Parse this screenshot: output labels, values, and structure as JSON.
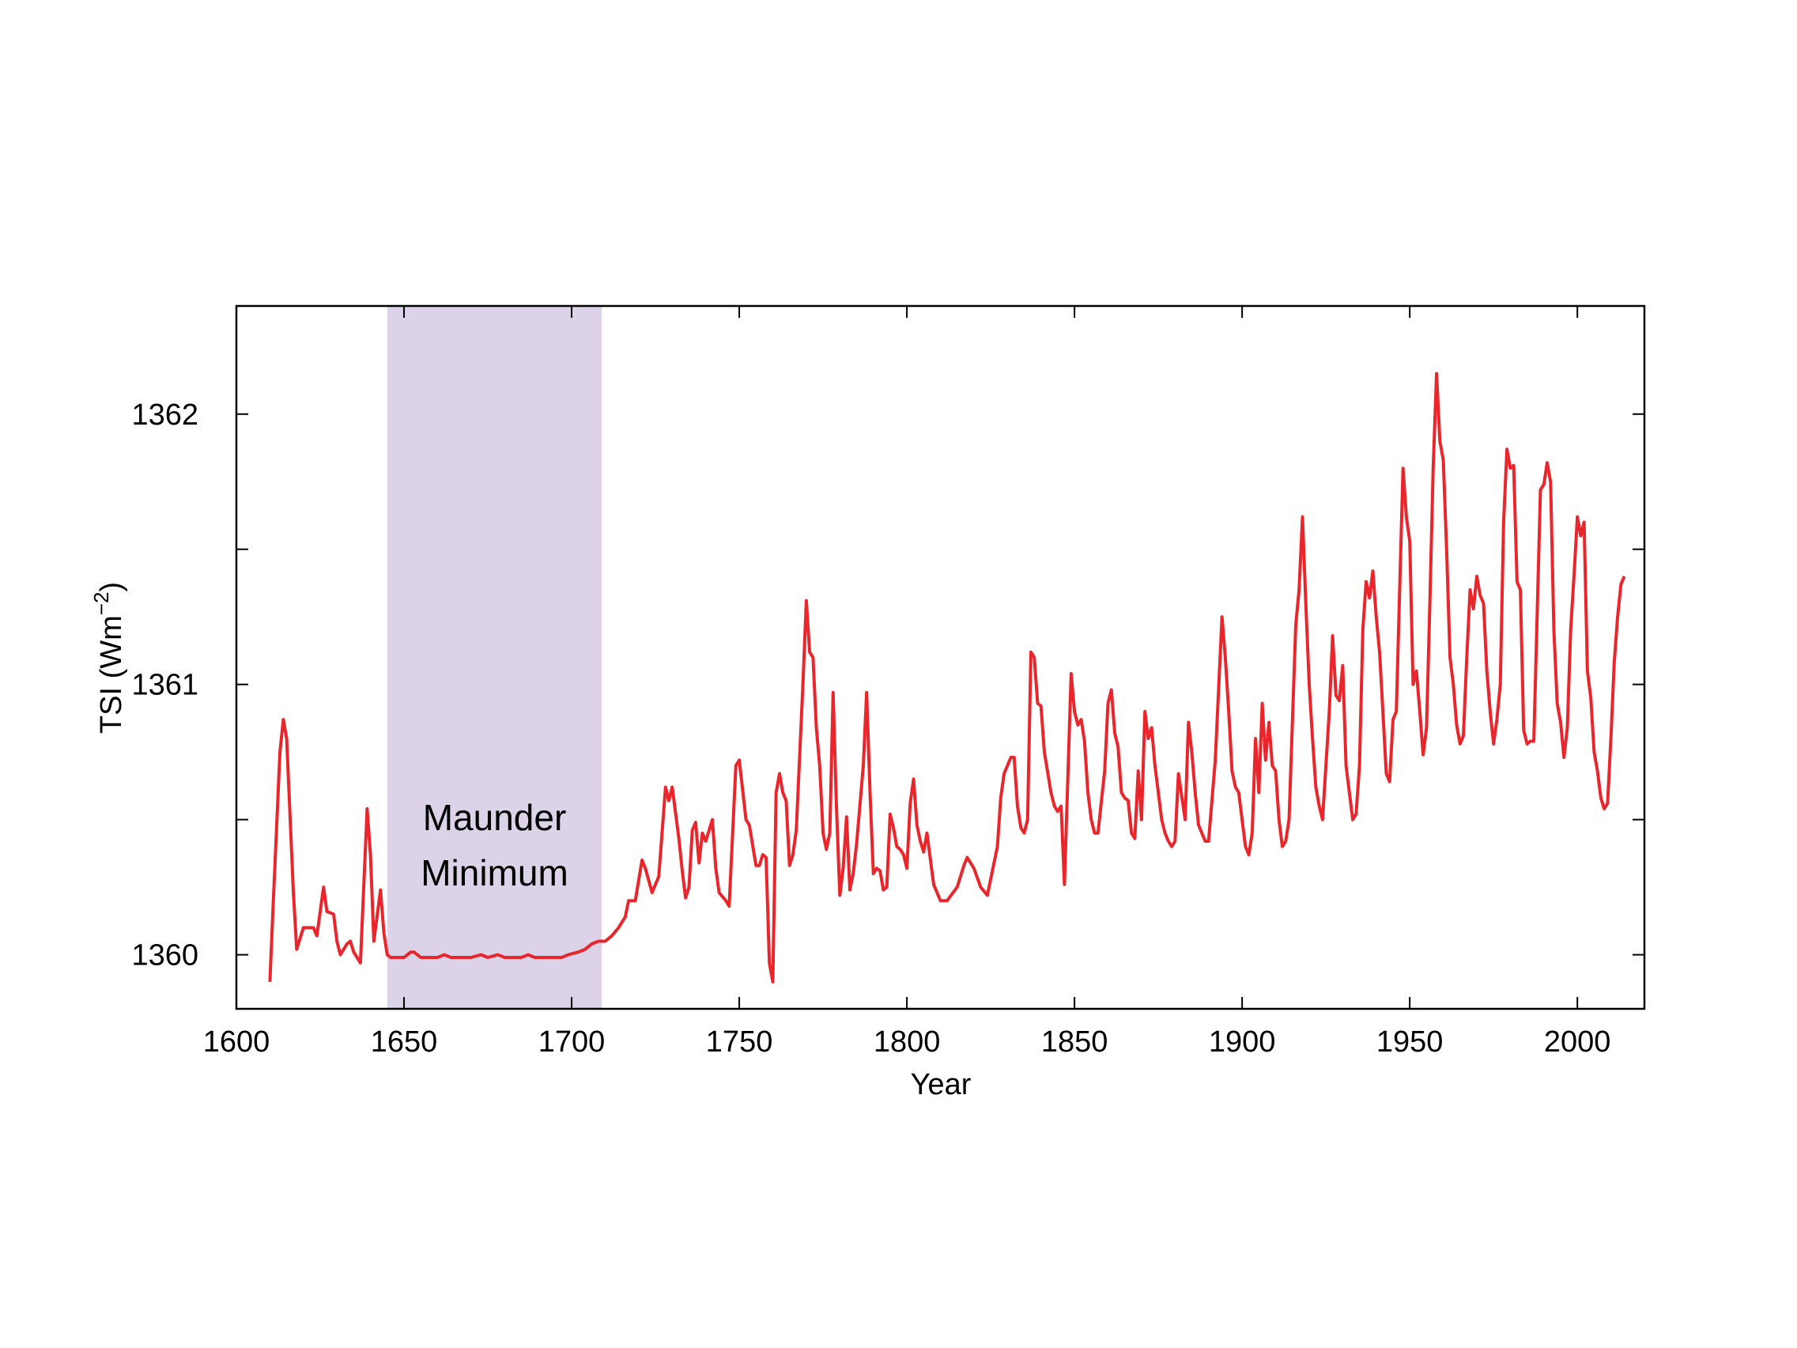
{
  "chart_data": {
    "type": "line",
    "xlabel": "Year",
    "ylabel": [
      "TSI (Wm",
      "−2",
      ")"
    ],
    "color": "#e8262b",
    "xlim": [
      1600,
      2020
    ],
    "ylim": [
      1359.8,
      1362.4
    ],
    "xticks": [
      1600,
      1650,
      1700,
      1750,
      1800,
      1850,
      1900,
      1950,
      2000
    ],
    "yticks": [
      1360,
      1361,
      1362
    ],
    "minor_yticks": [
      1360.5,
      1361.5
    ],
    "shade": {
      "xlim": [
        1645,
        1709
      ],
      "color": "#dcd3e8"
    },
    "annotation": {
      "lines": [
        "Maunder",
        "Minimum"
      ],
      "color": "#5b2a91"
    },
    "x": [
      1610,
      1611,
      1613,
      1614,
      1615,
      1617,
      1618,
      1620,
      1623,
      1624,
      1626,
      1627,
      1629,
      1630,
      1631,
      1633,
      1634,
      1635,
      1637,
      1639,
      1640,
      1641,
      1643,
      1644,
      1645,
      1646,
      1650,
      1652,
      1653,
      1655,
      1660,
      1662,
      1664,
      1670,
      1673,
      1675,
      1678,
      1680,
      1685,
      1687,
      1689,
      1697,
      1699,
      1702,
      1704,
      1706,
      1708,
      1710,
      1712,
      1714,
      1716,
      1717,
      1719,
      1721,
      1722,
      1724,
      1726,
      1728,
      1729,
      1730,
      1732,
      1733,
      1734,
      1735,
      1736,
      1737,
      1738,
      1739,
      1740,
      1742,
      1743,
      1744,
      1746,
      1747,
      1749,
      1750,
      1752,
      1753,
      1755,
      1756,
      1757,
      1758,
      1759,
      1760,
      1761,
      1762,
      1763,
      1764,
      1765,
      1766,
      1767,
      1769,
      1770,
      1771,
      1772,
      1773,
      1774,
      1775,
      1776,
      1777,
      1778,
      1779,
      1780,
      1781,
      1782,
      1783,
      1784,
      1785,
      1787,
      1788,
      1789,
      1790,
      1791,
      1792,
      1793,
      1794,
      1795,
      1796,
      1797,
      1798,
      1799,
      1800,
      1801,
      1802,
      1803,
      1804,
      1805,
      1806,
      1808,
      1810,
      1812,
      1815,
      1817,
      1818,
      1820,
      1822,
      1824,
      1827,
      1828,
      1829,
      1831,
      1832,
      1833,
      1834,
      1835,
      1836,
      1837,
      1838,
      1839,
      1840,
      1841,
      1843,
      1844,
      1845,
      1846,
      1847,
      1849,
      1850,
      1851,
      1852,
      1853,
      1854,
      1855,
      1856,
      1857,
      1859,
      1860,
      1861,
      1862,
      1863,
      1864,
      1865,
      1866,
      1867,
      1868,
      1869,
      1870,
      1871,
      1872,
      1873,
      1874,
      1876,
      1877,
      1878,
      1879,
      1880,
      1881,
      1883,
      1884,
      1885,
      1886,
      1887,
      1889,
      1890,
      1892,
      1894,
      1895,
      1896,
      1897,
      1898,
      1899,
      1900,
      1901,
      1902,
      1903,
      1904,
      1905,
      1906,
      1907,
      1908,
      1909,
      1910,
      1911,
      1912,
      1913,
      1914,
      1916,
      1917,
      1918,
      1919,
      1920,
      1921,
      1922,
      1923,
      1924,
      1926,
      1927,
      1928,
      1929,
      1930,
      1931,
      1932,
      1933,
      1934,
      1935,
      1936,
      1937,
      1938,
      1939,
      1940,
      1941,
      1942,
      1943,
      1944,
      1945,
      1946,
      1947,
      1948,
      1949,
      1950,
      1951,
      1952,
      1953,
      1954,
      1955,
      1956,
      1957,
      1958,
      1959,
      1960,
      1961,
      1962,
      1963,
      1964,
      1965,
      1966,
      1967,
      1968,
      1969,
      1970,
      1971,
      1972,
      1973,
      1974,
      1975,
      1976,
      1977,
      1978,
      1979,
      1980,
      1981,
      1982,
      1983,
      1984,
      1985,
      1986,
      1987,
      1989,
      1990,
      1991,
      1992,
      1993,
      1994,
      1995,
      1996,
      1997,
      1998,
      1999,
      2000,
      2001,
      2002,
      2003,
      2004,
      2005,
      2006,
      2007,
      2008,
      2009,
      2010,
      2011,
      2012,
      2013,
      2014
    ],
    "values": [
      1359.9,
      1360.19,
      1360.75,
      1360.87,
      1360.8,
      1360.23,
      1360.02,
      1360.1,
      1360.1,
      1360.07,
      1360.25,
      1360.16,
      1360.15,
      1360.05,
      1360.0,
      1360.04,
      1360.05,
      1360.01,
      1359.97,
      1360.54,
      1360.37,
      1360.05,
      1360.24,
      1360.08,
      1360.0,
      1359.99,
      1359.99,
      1360.01,
      1360.01,
      1359.99,
      1359.99,
      1360.0,
      1359.99,
      1359.99,
      1360.0,
      1359.99,
      1360.0,
      1359.99,
      1359.99,
      1360.0,
      1359.99,
      1359.99,
      1360.0,
      1360.01,
      1360.02,
      1360.04,
      1360.05,
      1360.05,
      1360.07,
      1360.1,
      1360.14,
      1360.2,
      1360.2,
      1360.35,
      1360.32,
      1360.23,
      1360.29,
      1360.62,
      1360.57,
      1360.62,
      1360.43,
      1360.31,
      1360.21,
      1360.25,
      1360.46,
      1360.49,
      1360.34,
      1360.45,
      1360.42,
      1360.5,
      1360.32,
      1360.23,
      1360.2,
      1360.18,
      1360.7,
      1360.72,
      1360.5,
      1360.48,
      1360.33,
      1360.33,
      1360.37,
      1360.36,
      1359.97,
      1359.9,
      1360.6,
      1360.67,
      1360.6,
      1360.57,
      1360.33,
      1360.37,
      1360.46,
      1361.0,
      1361.31,
      1361.12,
      1361.1,
      1360.84,
      1360.7,
      1360.45,
      1360.39,
      1360.45,
      1360.97,
      1360.55,
      1360.22,
      1360.32,
      1360.51,
      1360.24,
      1360.3,
      1360.41,
      1360.7,
      1360.97,
      1360.6,
      1360.3,
      1360.32,
      1360.31,
      1360.24,
      1360.25,
      1360.52,
      1360.47,
      1360.4,
      1360.39,
      1360.37,
      1360.32,
      1360.56,
      1360.65,
      1360.48,
      1360.42,
      1360.38,
      1360.45,
      1360.26,
      1360.2,
      1360.2,
      1360.25,
      1360.33,
      1360.36,
      1360.32,
      1360.25,
      1360.22,
      1360.4,
      1360.58,
      1360.67,
      1360.73,
      1360.73,
      1360.55,
      1360.47,
      1360.45,
      1360.5,
      1361.12,
      1361.1,
      1360.93,
      1360.92,
      1360.75,
      1360.6,
      1360.55,
      1360.53,
      1360.55,
      1360.26,
      1361.04,
      1360.9,
      1360.85,
      1360.87,
      1360.79,
      1360.6,
      1360.5,
      1360.45,
      1360.45,
      1360.68,
      1360.93,
      1360.98,
      1360.82,
      1360.77,
      1360.6,
      1360.58,
      1360.57,
      1360.45,
      1360.43,
      1360.68,
      1360.5,
      1360.9,
      1360.8,
      1360.84,
      1360.7,
      1360.5,
      1360.45,
      1360.42,
      1360.4,
      1360.42,
      1360.67,
      1360.5,
      1360.86,
      1360.75,
      1360.6,
      1360.48,
      1360.42,
      1360.42,
      1360.72,
      1361.25,
      1361.1,
      1360.9,
      1360.68,
      1360.62,
      1360.6,
      1360.5,
      1360.4,
      1360.37,
      1360.45,
      1360.8,
      1360.6,
      1360.93,
      1360.72,
      1360.86,
      1360.7,
      1360.68,
      1360.5,
      1360.4,
      1360.42,
      1360.5,
      1361.22,
      1361.35,
      1361.62,
      1361.3,
      1361.0,
      1360.8,
      1360.62,
      1360.55,
      1360.5,
      1360.9,
      1361.18,
      1360.96,
      1360.94,
      1361.07,
      1360.7,
      1360.6,
      1360.5,
      1360.52,
      1360.7,
      1361.2,
      1361.38,
      1361.32,
      1361.42,
      1361.25,
      1361.12,
      1360.9,
      1360.67,
      1360.64,
      1360.87,
      1360.9,
      1361.35,
      1361.8,
      1361.62,
      1361.53,
      1361.0,
      1361.05,
      1360.9,
      1360.74,
      1360.84,
      1361.3,
      1361.8,
      1362.15,
      1361.9,
      1361.83,
      1361.5,
      1361.1,
      1361.0,
      1360.85,
      1360.78,
      1360.81,
      1361.1,
      1361.35,
      1361.28,
      1361.4,
      1361.33,
      1361.3,
      1361.05,
      1360.9,
      1360.78,
      1360.87,
      1361.0,
      1361.6,
      1361.87,
      1361.8,
      1361.81,
      1361.38,
      1361.35,
      1360.83,
      1360.78,
      1360.79,
      1360.79,
      1361.72,
      1361.74,
      1361.82,
      1361.75,
      1361.2,
      1360.93,
      1360.86,
      1360.73,
      1360.84,
      1361.2,
      1361.4,
      1361.62,
      1361.55,
      1361.6,
      1361.05,
      1360.95,
      1360.75,
      1360.68,
      1360.58,
      1360.54,
      1360.56,
      1360.8,
      1361.08,
      1361.25,
      1361.37,
      1361.4
    ]
  }
}
